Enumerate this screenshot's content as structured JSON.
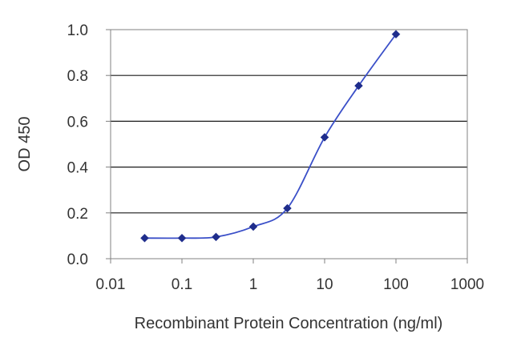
{
  "chart_data": {
    "type": "scatter",
    "title": "",
    "xlabel": "Recombinant Protein Concentration (ng/ml)",
    "ylabel": "OD 450",
    "x_scale": "log",
    "xlim": [
      0.01,
      1000
    ],
    "ylim": [
      0.0,
      1.0
    ],
    "x_ticks": [
      "0.01",
      "0.1",
      "1",
      "10",
      "100",
      "1000"
    ],
    "y_ticks": [
      "0.0",
      "0.2",
      "0.4",
      "0.6",
      "0.8",
      "1.0"
    ],
    "grid": "horizontal",
    "legend": "none",
    "line": "smoothed",
    "color": "#1f2d8c",
    "series": [
      {
        "x": [
          0.03,
          0.1,
          0.3,
          1,
          3,
          10,
          30,
          100
        ],
        "y": [
          0.09,
          0.09,
          0.095,
          0.14,
          0.22,
          0.53,
          0.755,
          0.98
        ]
      }
    ]
  }
}
